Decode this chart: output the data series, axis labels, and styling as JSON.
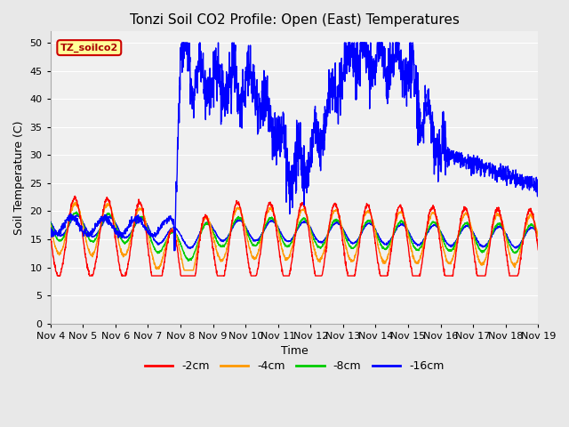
{
  "title": "Tonzi Soil CO2 Profile: Open (East) Temperatures",
  "xlabel": "Time",
  "ylabel": "Soil Temperature (C)",
  "ylim": [
    0,
    52
  ],
  "yticks": [
    0,
    5,
    10,
    15,
    20,
    25,
    30,
    35,
    40,
    45,
    50
  ],
  "xtick_labels": [
    "Nov 4",
    "Nov 5",
    "Nov 6",
    "Nov 7",
    "Nov 8",
    "Nov 9",
    "Nov 10",
    "Nov 11",
    "Nov 12",
    "Nov 13",
    "Nov 14",
    "Nov 15",
    "Nov 16",
    "Nov 17",
    "Nov 18",
    "Nov 19"
  ],
  "legend_labels": [
    "-2cm",
    "-4cm",
    "-8cm",
    "-16cm"
  ],
  "legend_colors": [
    "#ff0000",
    "#ff9900",
    "#00cc00",
    "#0000ff"
  ],
  "tz_color": "#0000ff",
  "tz_label": "TZ_soilco2",
  "background_color": "#e8e8e8",
  "plot_bg_color": "#f0f0f0",
  "grid_color": "#ffffff",
  "title_fontsize": 11,
  "axis_fontsize": 9,
  "tick_fontsize": 8,
  "n_days": 15,
  "pts_per_day": 144
}
